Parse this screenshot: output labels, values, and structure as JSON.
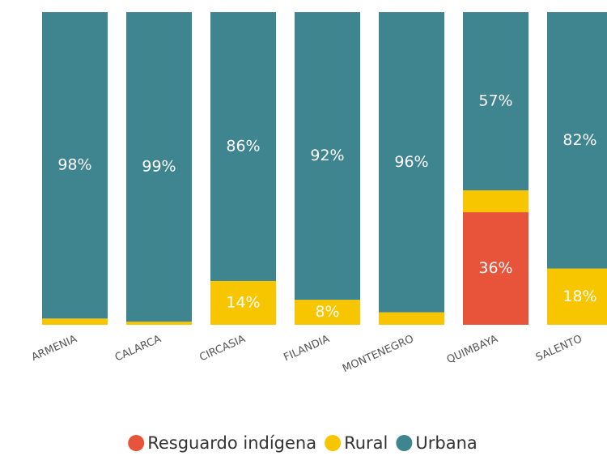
{
  "chart_data": {
    "type": "stacked_bar",
    "categories": [
      "ARMENIA",
      "CALARCA",
      "CIRCASIA",
      "FILANDIA",
      "MONTENEGRO",
      "QUIMBAYA",
      "SALENTO"
    ],
    "series": [
      {
        "name": "Resguardo indígena",
        "color": "#e8543a",
        "values": [
          0,
          0,
          0,
          0,
          0,
          36,
          0
        ],
        "value_labels": [
          null,
          null,
          null,
          null,
          null,
          "36%",
          null
        ]
      },
      {
        "name": "Rural",
        "color": "#f8c600",
        "values": [
          2,
          1,
          14,
          8,
          4,
          7,
          18
        ],
        "value_labels": [
          null,
          null,
          "14%",
          "8%",
          null,
          null,
          "18%"
        ]
      },
      {
        "name": "Urbana",
        "color": "#3f8590",
        "values": [
          98,
          99,
          86,
          92,
          96,
          57,
          82
        ],
        "value_labels": [
          "98%",
          "99%",
          "86%",
          "92%",
          "96%",
          "57%",
          "82%"
        ]
      }
    ],
    "ylim": [
      0,
      100
    ],
    "legend": "bottom"
  }
}
